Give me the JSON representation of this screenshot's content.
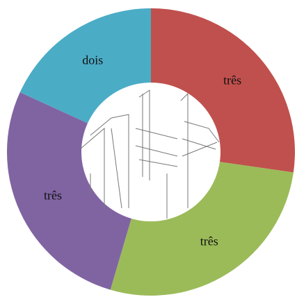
{
  "chart_data": {
    "type": "donut",
    "categories": [
      "três",
      "três",
      "três",
      "dois"
    ],
    "values": [
      3,
      3,
      3,
      2
    ],
    "colors": [
      "#c0504d",
      "#9bbb59",
      "#8064a2",
      "#4bacc6"
    ]
  }
}
